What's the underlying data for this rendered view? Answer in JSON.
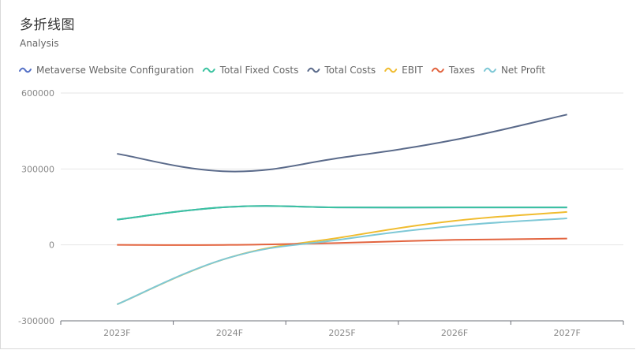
{
  "chart_data": {
    "type": "line",
    "title": "多折线图",
    "subtitle": "Analysis",
    "categories": [
      "2023F",
      "2024F",
      "2025F",
      "2026F",
      "2027F"
    ],
    "ylim": [
      -300000,
      600000
    ],
    "yticks": [
      -300000,
      0,
      300000,
      600000
    ],
    "grid": true,
    "smooth": true,
    "legend_position": "top-left",
    "series": [
      {
        "name": "Metaverse Website Configuration",
        "color": "#5470c6",
        "values": [
          100000,
          150000,
          148000,
          148000,
          148000
        ]
      },
      {
        "name": "Total Fixed Costs",
        "color": "#3bc3a0",
        "values": [
          100000,
          150000,
          148000,
          148000,
          148000
        ]
      },
      {
        "name": "Total Costs",
        "color": "#5a6a8a",
        "values": [
          360000,
          290000,
          345000,
          415000,
          515000
        ]
      },
      {
        "name": "EBIT",
        "color": "#f0bc2f",
        "values": [
          -235000,
          -50000,
          30000,
          95000,
          130000
        ]
      },
      {
        "name": "Taxes",
        "color": "#e2643f",
        "values": [
          0,
          0,
          8000,
          20000,
          25000
        ]
      },
      {
        "name": "Net Profit",
        "color": "#7ec8d6",
        "values": [
          -235000,
          -50000,
          22000,
          75000,
          105000
        ]
      }
    ]
  }
}
